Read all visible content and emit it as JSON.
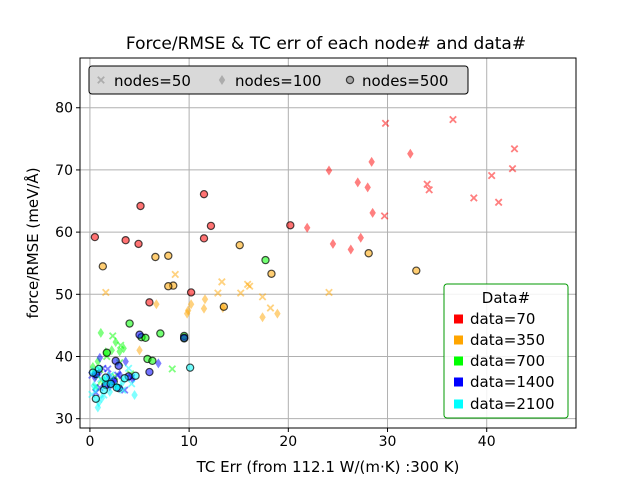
{
  "chart_data": {
    "type": "scatter",
    "title": "Force/RMSE & TC err of each node# and data#",
    "xlabel": "TC Err (from 112.1 W/(m·K) :300 K)",
    "ylabel": "force/RMSE (meV/Å)",
    "xlim": [
      -1,
      49
    ],
    "ylim": [
      28.5,
      88
    ],
    "xticks": [
      0,
      10,
      20,
      30,
      40
    ],
    "yticks": [
      30,
      40,
      50,
      60,
      70,
      80
    ],
    "grid": true,
    "marker_legend": {
      "placement": "top-left",
      "entries": [
        {
          "label": "nodes=50",
          "marker": "x"
        },
        {
          "label": "nodes=100",
          "marker": "diamond"
        },
        {
          "label": "nodes=500",
          "marker": "circle"
        }
      ]
    },
    "color_legend": {
      "placement": "bottom-right",
      "title": "Data#",
      "entries": [
        {
          "label": "data=70",
          "color": "#ff0000"
        },
        {
          "label": "data=350",
          "color": "#ffa500"
        },
        {
          "label": "data=700",
          "color": "#00ff00"
        },
        {
          "label": "data=1400",
          "color": "#0000ff"
        },
        {
          "label": "data=2100",
          "color": "#00ffff"
        }
      ]
    },
    "series": [
      {
        "data": "70",
        "nodes": "50",
        "color": "#ff0000",
        "marker": "x",
        "points": [
          [
            29.8,
            77.5
          ],
          [
            36.6,
            78.1
          ],
          [
            42.8,
            73.4
          ],
          [
            40.5,
            69.1
          ],
          [
            42.6,
            70.2
          ],
          [
            34.0,
            67.7
          ],
          [
            34.2,
            66.8
          ],
          [
            38.7,
            65.5
          ],
          [
            41.2,
            64.8
          ],
          [
            29.7,
            62.6
          ]
        ]
      },
      {
        "data": "70",
        "nodes": "100",
        "color": "#ff0000",
        "marker": "diamond",
        "points": [
          [
            32.3,
            72.6
          ],
          [
            28.4,
            71.3
          ],
          [
            24.1,
            69.9
          ],
          [
            27.0,
            68.0
          ],
          [
            28.0,
            67.2
          ],
          [
            28.5,
            63.1
          ],
          [
            27.3,
            59.1
          ],
          [
            21.9,
            60.7
          ],
          [
            24.5,
            58.1
          ],
          [
            26.3,
            57.2
          ]
        ]
      },
      {
        "data": "70",
        "nodes": "500",
        "color": "#ff0000",
        "marker": "circle",
        "points": [
          [
            5.1,
            64.2
          ],
          [
            11.5,
            66.1
          ],
          [
            12.2,
            61.0
          ],
          [
            20.2,
            61.1
          ],
          [
            0.5,
            59.2
          ],
          [
            3.6,
            58.7
          ],
          [
            4.9,
            58.1
          ],
          [
            11.5,
            59.0
          ],
          [
            6.0,
            48.7
          ],
          [
            10.2,
            50.3
          ]
        ]
      },
      {
        "data": "350",
        "nodes": "50",
        "color": "#ffa500",
        "marker": "x",
        "points": [
          [
            1.6,
            50.3
          ],
          [
            8.6,
            53.2
          ],
          [
            15.9,
            51.6
          ],
          [
            16.1,
            51.3
          ],
          [
            12.9,
            50.2
          ],
          [
            15.2,
            50.2
          ],
          [
            24.1,
            50.3
          ],
          [
            17.4,
            49.6
          ],
          [
            18.2,
            47.8
          ],
          [
            13.3,
            52.0
          ]
        ]
      },
      {
        "data": "350",
        "nodes": "100",
        "color": "#ffa500",
        "marker": "diamond",
        "points": [
          [
            9.9,
            47.4
          ],
          [
            10.2,
            48.4
          ],
          [
            11.6,
            49.2
          ],
          [
            11.5,
            47.7
          ],
          [
            13.4,
            47.8
          ],
          [
            17.4,
            46.3
          ],
          [
            18.9,
            46.9
          ],
          [
            6.7,
            48.4
          ],
          [
            9.8,
            46.9
          ],
          [
            5.0,
            41.0
          ]
        ]
      },
      {
        "data": "350",
        "nodes": "500",
        "color": "#ffa500",
        "marker": "circle",
        "points": [
          [
            1.3,
            54.5
          ],
          [
            6.6,
            56.0
          ],
          [
            7.9,
            56.2
          ],
          [
            15.1,
            57.9
          ],
          [
            28.1,
            56.6
          ],
          [
            18.3,
            53.3
          ],
          [
            32.9,
            53.8
          ],
          [
            8.4,
            51.4
          ],
          [
            7.9,
            51.3
          ],
          [
            13.5,
            48.0
          ]
        ]
      },
      {
        "data": "700",
        "nodes": "50",
        "color": "#00ff00",
        "marker": "x",
        "points": [
          [
            2.3,
            43.3
          ],
          [
            3.1,
            41.8
          ],
          [
            1.7,
            40.0
          ],
          [
            3.0,
            39.0
          ],
          [
            1.0,
            37.9
          ],
          [
            8.3,
            38.0
          ],
          [
            2.5,
            36.8
          ],
          [
            1.2,
            36.2
          ],
          [
            0.6,
            35.1
          ],
          [
            4.1,
            37.2
          ]
        ]
      },
      {
        "data": "700",
        "nodes": "100",
        "color": "#00ff00",
        "marker": "diamond",
        "points": [
          [
            1.1,
            43.8
          ],
          [
            2.6,
            42.3
          ],
          [
            3.4,
            41.3
          ],
          [
            2.2,
            41.0
          ],
          [
            1.6,
            40.7
          ],
          [
            3.0,
            40.8
          ],
          [
            0.8,
            39.2
          ],
          [
            0.3,
            38.3
          ],
          [
            0.6,
            36.9
          ],
          [
            1.4,
            35.6
          ]
        ]
      },
      {
        "data": "700",
        "nodes": "500",
        "color": "#00ff00",
        "marker": "circle",
        "points": [
          [
            17.7,
            55.5
          ],
          [
            4.0,
            45.3
          ],
          [
            5.2,
            43.1
          ],
          [
            7.1,
            43.7
          ],
          [
            9.5,
            43.3
          ],
          [
            9.5,
            42.9
          ],
          [
            5.6,
            43.0
          ],
          [
            1.7,
            40.6
          ],
          [
            5.8,
            39.6
          ],
          [
            6.3,
            39.3
          ]
        ]
      },
      {
        "data": "1400",
        "nodes": "50",
        "color": "#0000ff",
        "marker": "x",
        "points": [
          [
            1.3,
            38.1
          ],
          [
            0.2,
            37.0
          ],
          [
            2.1,
            35.6
          ],
          [
            3.5,
            34.6
          ],
          [
            0.6,
            34.2
          ],
          [
            2.1,
            36.3
          ],
          [
            4.2,
            36.6
          ],
          [
            1.8,
            38.0
          ],
          [
            2.8,
            37.0
          ],
          [
            1.0,
            35.0
          ]
        ]
      },
      {
        "data": "1400",
        "nodes": "100",
        "color": "#0000ff",
        "marker": "diamond",
        "points": [
          [
            3.6,
            39.2
          ],
          [
            3.0,
            37.1
          ],
          [
            0.5,
            36.6
          ],
          [
            1.0,
            39.8
          ],
          [
            4.3,
            36.4
          ],
          [
            6.9,
            38.9
          ],
          [
            2.4,
            36.1
          ],
          [
            1.9,
            36.9
          ],
          [
            0.9,
            37.3
          ],
          [
            2.0,
            35.2
          ]
        ]
      },
      {
        "data": "1400",
        "nodes": "500",
        "color": "#0000ff",
        "marker": "circle",
        "points": [
          [
            5.0,
            43.5
          ],
          [
            9.5,
            43.0
          ],
          [
            6.0,
            37.5
          ],
          [
            2.6,
            39.3
          ],
          [
            2.9,
            38.5
          ],
          [
            3.9,
            36.8
          ],
          [
            1.6,
            35.4
          ],
          [
            2.4,
            36.0
          ],
          [
            2.9,
            34.9
          ],
          [
            0.6,
            37.2
          ]
        ]
      },
      {
        "data": "2100",
        "nodes": "50",
        "color": "#00ffff",
        "marker": "x",
        "points": [
          [
            0.5,
            37.8
          ],
          [
            1.9,
            36.0
          ],
          [
            2.9,
            35.2
          ],
          [
            3.3,
            34.6
          ],
          [
            1.4,
            33.8
          ],
          [
            3.9,
            38.1
          ],
          [
            0.2,
            33.9
          ],
          [
            1.1,
            36.4
          ],
          [
            2.1,
            37.0
          ],
          [
            4.2,
            35.6
          ]
        ]
      },
      {
        "data": "2100",
        "nodes": "100",
        "color": "#00ffff",
        "marker": "diamond",
        "points": [
          [
            0.8,
            31.8
          ],
          [
            4.5,
            33.8
          ],
          [
            0.6,
            34.8
          ],
          [
            2.7,
            35.1
          ],
          [
            1.5,
            36.0
          ],
          [
            0.9,
            32.6
          ],
          [
            3.3,
            35.9
          ],
          [
            0.4,
            35.3
          ],
          [
            2.0,
            34.3
          ],
          [
            1.2,
            33.3
          ]
        ]
      },
      {
        "data": "2100",
        "nodes": "500",
        "color": "#00ffff",
        "marker": "circle",
        "points": [
          [
            10.1,
            38.2
          ],
          [
            0.6,
            33.2
          ],
          [
            2.7,
            35.0
          ],
          [
            1.6,
            36.6
          ],
          [
            0.9,
            38.0
          ],
          [
            3.5,
            36.5
          ],
          [
            4.6,
            36.9
          ],
          [
            2.1,
            35.6
          ],
          [
            0.3,
            37.4
          ],
          [
            1.4,
            34.6
          ]
        ]
      }
    ]
  }
}
